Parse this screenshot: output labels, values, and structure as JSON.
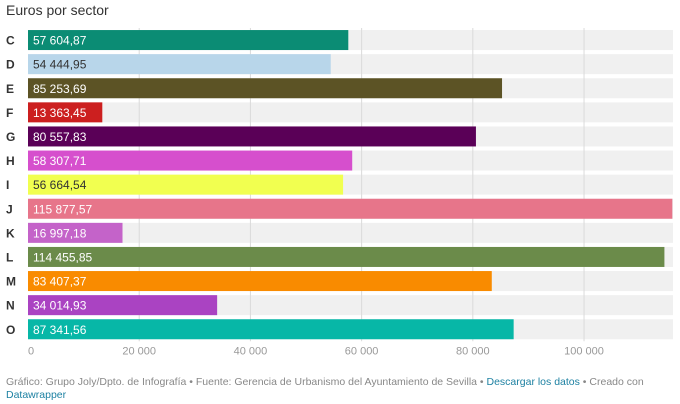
{
  "chart_data": {
    "type": "bar",
    "orientation": "horizontal",
    "title": "Euros por sector",
    "categories": [
      "C",
      "D",
      "E",
      "F",
      "G",
      "H",
      "I",
      "J",
      "K",
      "L",
      "M",
      "N",
      "O"
    ],
    "values": [
      57604.87,
      54444.95,
      85253.69,
      13363.45,
      80557.83,
      58307.71,
      56664.54,
      115877.57,
      16997.18,
      114455.85,
      83407.37,
      34014.93,
      87341.56
    ],
    "value_labels": [
      "57 604,87",
      "54 444,95",
      "85 253,69",
      "13 363,45",
      "80 557,83",
      "58 307,71",
      "56 664,54",
      "115 877,57",
      "16 997,18",
      "114 455,85",
      "83 407,37",
      "34 014,93",
      "87 341,56"
    ],
    "colors": [
      "#0b8c74",
      "#b8d6ea",
      "#5c5325",
      "#cc1f1f",
      "#5a0057",
      "#d64fcd",
      "#f1ff50",
      "#e7758a",
      "#c463c9",
      "#6b8b4a",
      "#f98b00",
      "#aa43c2",
      "#07b7a7"
    ],
    "label_colors": [
      "#ffffff",
      "#333333",
      "#ffffff",
      "#ffffff",
      "#ffffff",
      "#ffffff",
      "#333333",
      "#ffffff",
      "#ffffff",
      "#ffffff",
      "#ffffff",
      "#ffffff",
      "#ffffff"
    ],
    "xlim": [
      0,
      116000
    ],
    "xticks": [
      0,
      20000,
      40000,
      60000,
      80000,
      100000
    ],
    "xtick_labels": [
      "0",
      "20 000",
      "40 000",
      "60 000",
      "80 000",
      "100 000"
    ],
    "grid": true,
    "xlabel": "",
    "ylabel": ""
  },
  "footer": {
    "text": "Gráfico: Grupo Joly/Dpto. de Infografía • Fuente: Gerencia de Urbanismo del Ayuntamiento de Sevilla • ",
    "download_link": "Descargar los datos",
    "created_with": " • Creado con ",
    "tool_link": "Datawrapper"
  }
}
